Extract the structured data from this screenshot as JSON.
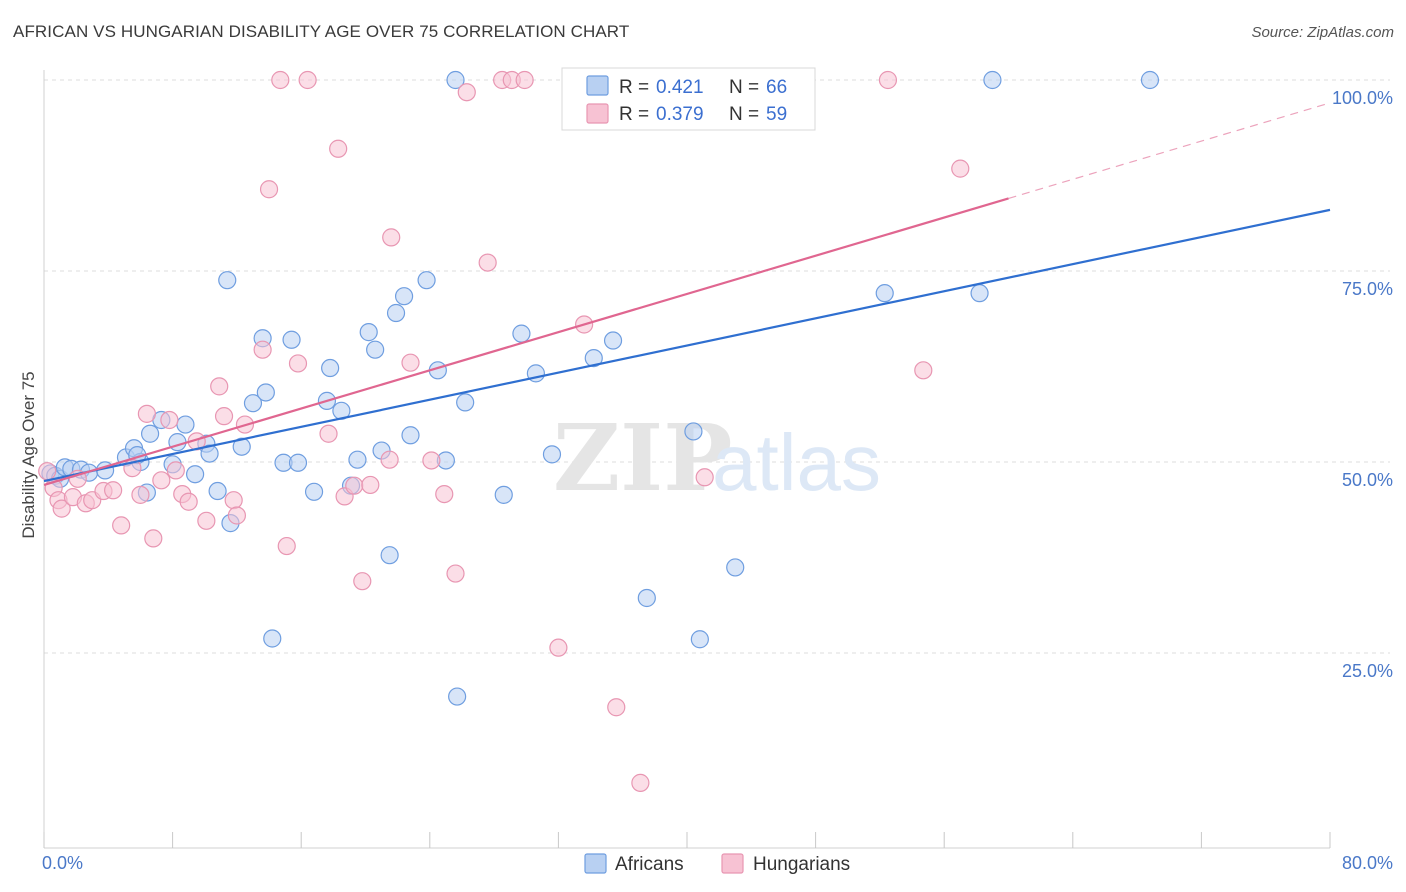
{
  "title": "AFRICAN VS HUNGARIAN DISABILITY AGE OVER 75 CORRELATION CHART",
  "source": "Source: ZipAtlas.com",
  "watermark": {
    "zip": "ZIP",
    "atlas": "atlas"
  },
  "colors": {
    "africans_fill": "#b8d0f2",
    "africans_stroke": "#6f9ee0",
    "africans_line": "#2f6fd0",
    "hungarians_fill": "#f7c2d3",
    "hungarians_stroke": "#e896b2",
    "hungarians_line": "#e06690",
    "grid": "#dddddd",
    "tick_text": "#4a78c8"
  },
  "legend": {
    "rows": [
      {
        "r_label": "R = ",
        "r_value": "0.421",
        "n_label": "N = ",
        "n_value": "66"
      },
      {
        "r_label": "R = ",
        "r_value": "0.379",
        "n_label": "N = ",
        "n_value": "59"
      }
    ]
  },
  "chart_data": {
    "type": "scatter",
    "title": "AFRICAN VS HUNGARIAN DISABILITY AGE OVER 75 CORRELATION CHART",
    "xlabel": "",
    "ylabel": "Disability Age Over 75",
    "xlim": [
      0,
      80
    ],
    "ylim": [
      0,
      105
    ],
    "x_tick_labels": [
      "0.0%",
      "80.0%"
    ],
    "y_ticks": [
      25,
      50,
      75,
      100
    ],
    "y_tick_labels": [
      "25.0%",
      "50.0%",
      "75.0%",
      "100.0%"
    ],
    "grid": true,
    "legend_position": "top-center",
    "series": [
      {
        "name": "Africans",
        "color": "#6f9ee0",
        "trendline": {
          "x0": 0,
          "y0": 47.5,
          "x1": 80,
          "y1": 83
        },
        "points": [
          [
            0.4,
            48.5
          ],
          [
            0.7,
            48.2
          ],
          [
            1.0,
            47.8
          ],
          [
            1.3,
            49.3
          ],
          [
            1.7,
            49.1
          ],
          [
            2.3,
            49.0
          ],
          [
            2.8,
            48.6
          ],
          [
            3.8,
            48.9
          ],
          [
            5.1,
            50.6
          ],
          [
            5.6,
            51.8
          ],
          [
            6.0,
            50.0
          ],
          [
            5.8,
            50.9
          ],
          [
            6.4,
            46.0
          ],
          [
            6.6,
            53.7
          ],
          [
            7.3,
            55.5
          ],
          [
            8.0,
            49.7
          ],
          [
            8.3,
            52.6
          ],
          [
            8.8,
            54.9
          ],
          [
            9.4,
            48.4
          ],
          [
            10.1,
            52.4
          ],
          [
            10.3,
            51.1
          ],
          [
            10.8,
            46.2
          ],
          [
            11.4,
            73.8
          ],
          [
            11.6,
            42.0
          ],
          [
            12.3,
            52.0
          ],
          [
            13.0,
            57.7
          ],
          [
            13.6,
            66.2
          ],
          [
            13.8,
            59.1
          ],
          [
            14.2,
            26.9
          ],
          [
            14.9,
            49.9
          ],
          [
            15.4,
            66.0
          ],
          [
            15.8,
            49.9
          ],
          [
            16.8,
            46.1
          ],
          [
            17.6,
            58.0
          ],
          [
            17.8,
            62.3
          ],
          [
            18.5,
            56.7
          ],
          [
            19.1,
            46.9
          ],
          [
            19.5,
            50.3
          ],
          [
            20.2,
            67.0
          ],
          [
            20.6,
            64.7
          ],
          [
            21.0,
            51.5
          ],
          [
            21.5,
            37.8
          ],
          [
            21.9,
            69.5
          ],
          [
            22.4,
            71.7
          ],
          [
            22.8,
            53.5
          ],
          [
            23.8,
            73.8
          ],
          [
            24.5,
            62.0
          ],
          [
            25.0,
            50.2
          ],
          [
            25.7,
            19.3
          ],
          [
            26.2,
            57.8
          ],
          [
            25.6,
            100
          ],
          [
            28.6,
            45.7
          ],
          [
            29.7,
            66.8
          ],
          [
            30.6,
            61.6
          ],
          [
            31.6,
            51.0
          ],
          [
            33.0,
            100
          ],
          [
            34.2,
            63.6
          ],
          [
            35.4,
            65.9
          ],
          [
            37.5,
            32.2
          ],
          [
            40.4,
            54.0
          ],
          [
            40.8,
            26.8
          ],
          [
            43.0,
            36.2
          ],
          [
            52.3,
            72.1
          ],
          [
            58.2,
            72.1
          ],
          [
            59.0,
            100
          ],
          [
            68.8,
            100
          ]
        ]
      },
      {
        "name": "Hungarians",
        "color": "#e896b2",
        "trendline": {
          "x0": 0,
          "y0": 47.0,
          "x1": 60,
          "y1": 84.5,
          "dash_to_x": 80,
          "dash_to_y": 97
        },
        "points": [
          [
            0.2,
            48.8
          ],
          [
            0.6,
            46.6
          ],
          [
            0.9,
            45.0
          ],
          [
            1.1,
            43.9
          ],
          [
            1.8,
            45.4
          ],
          [
            2.1,
            47.8
          ],
          [
            2.6,
            44.6
          ],
          [
            3.0,
            45.0
          ],
          [
            3.7,
            46.2
          ],
          [
            4.3,
            46.3
          ],
          [
            4.8,
            41.7
          ],
          [
            5.5,
            49.2
          ],
          [
            6.0,
            45.7
          ],
          [
            6.4,
            56.3
          ],
          [
            6.8,
            40.0
          ],
          [
            7.3,
            47.6
          ],
          [
            7.8,
            55.5
          ],
          [
            8.2,
            48.9
          ],
          [
            8.6,
            45.8
          ],
          [
            9.0,
            44.8
          ],
          [
            9.5,
            52.7
          ],
          [
            10.1,
            42.3
          ],
          [
            10.9,
            59.9
          ],
          [
            11.2,
            56.0
          ],
          [
            11.8,
            45.0
          ],
          [
            12.0,
            43.0
          ],
          [
            12.5,
            54.9
          ],
          [
            13.6,
            64.7
          ],
          [
            14.0,
            85.7
          ],
          [
            14.7,
            100
          ],
          [
            15.1,
            39.0
          ],
          [
            15.8,
            62.9
          ],
          [
            16.4,
            100
          ],
          [
            18.3,
            91.0
          ],
          [
            17.7,
            53.7
          ],
          [
            18.7,
            45.5
          ],
          [
            19.3,
            46.9
          ],
          [
            19.8,
            34.4
          ],
          [
            20.3,
            47.0
          ],
          [
            21.5,
            50.3
          ],
          [
            21.6,
            79.4
          ],
          [
            22.8,
            63.0
          ],
          [
            24.1,
            50.2
          ],
          [
            24.9,
            45.8
          ],
          [
            25.6,
            35.4
          ],
          [
            26.3,
            98.4
          ],
          [
            27.6,
            76.1
          ],
          [
            28.5,
            100
          ],
          [
            29.1,
            100
          ],
          [
            29.9,
            100
          ],
          [
            32.0,
            25.7
          ],
          [
            33.6,
            68.0
          ],
          [
            35.6,
            17.9
          ],
          [
            37.1,
            8.0
          ],
          [
            38.1,
            100
          ],
          [
            41.1,
            48.0
          ],
          [
            52.5,
            100
          ],
          [
            57.0,
            88.4
          ],
          [
            54.7,
            62.0
          ]
        ]
      }
    ]
  },
  "bottom_legend": [
    "Africans",
    "Hungarians"
  ]
}
